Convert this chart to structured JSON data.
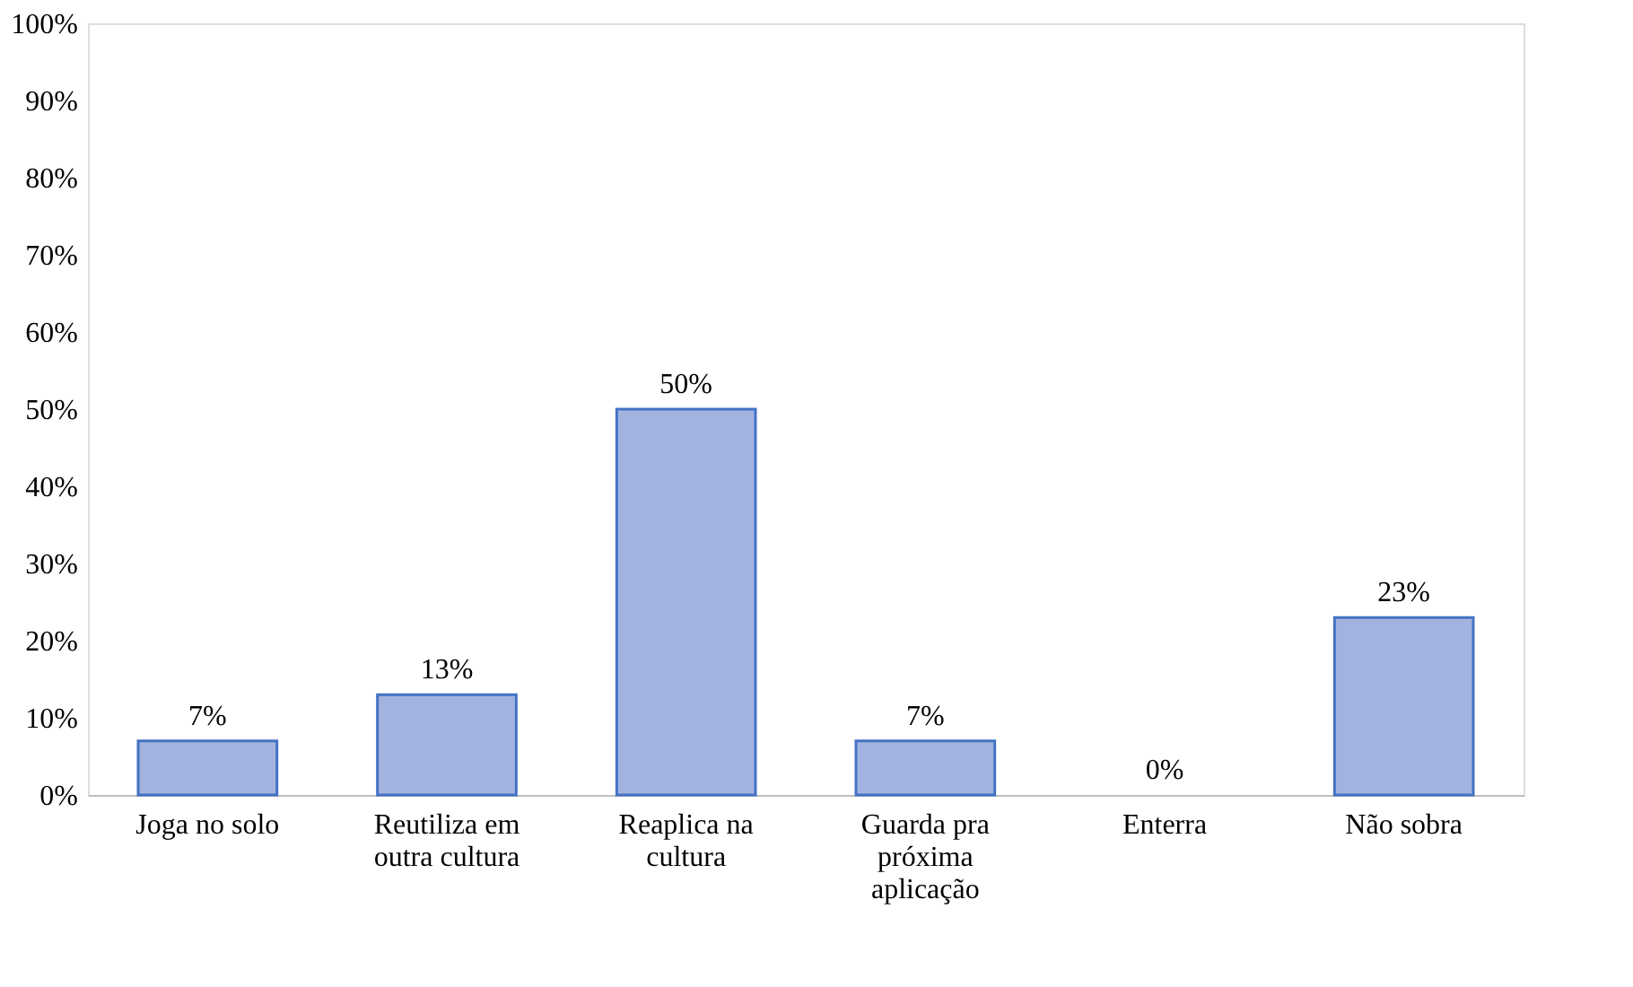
{
  "chart_data": {
    "type": "bar",
    "categories": [
      "Joga no solo",
      "Reutiliza em outra cultura",
      "Reaplica na cultura",
      "Guarda pra próxima aplicação",
      "Enterra",
      "Não sobra"
    ],
    "values": [
      7,
      13,
      50,
      7,
      0,
      23
    ],
    "value_labels": [
      "7%",
      "13%",
      "50%",
      "7%",
      "0%",
      "23%"
    ],
    "color": "#a3b3df",
    "ylim": [
      0,
      100
    ],
    "yticks": [
      {
        "value": 0,
        "label": "0%"
      },
      {
        "value": 10,
        "label": "10%"
      },
      {
        "value": 20,
        "label": "20%"
      },
      {
        "value": 30,
        "label": "30%"
      },
      {
        "value": 40,
        "label": "40%"
      },
      {
        "value": 50,
        "label": "50%"
      },
      {
        "value": 60,
        "label": "60%"
      },
      {
        "value": 70,
        "label": "70%"
      },
      {
        "value": 80,
        "label": "80%"
      },
      {
        "value": 90,
        "label": "90%"
      },
      {
        "value": 100,
        "label": "100%"
      }
    ],
    "grid": false
  }
}
